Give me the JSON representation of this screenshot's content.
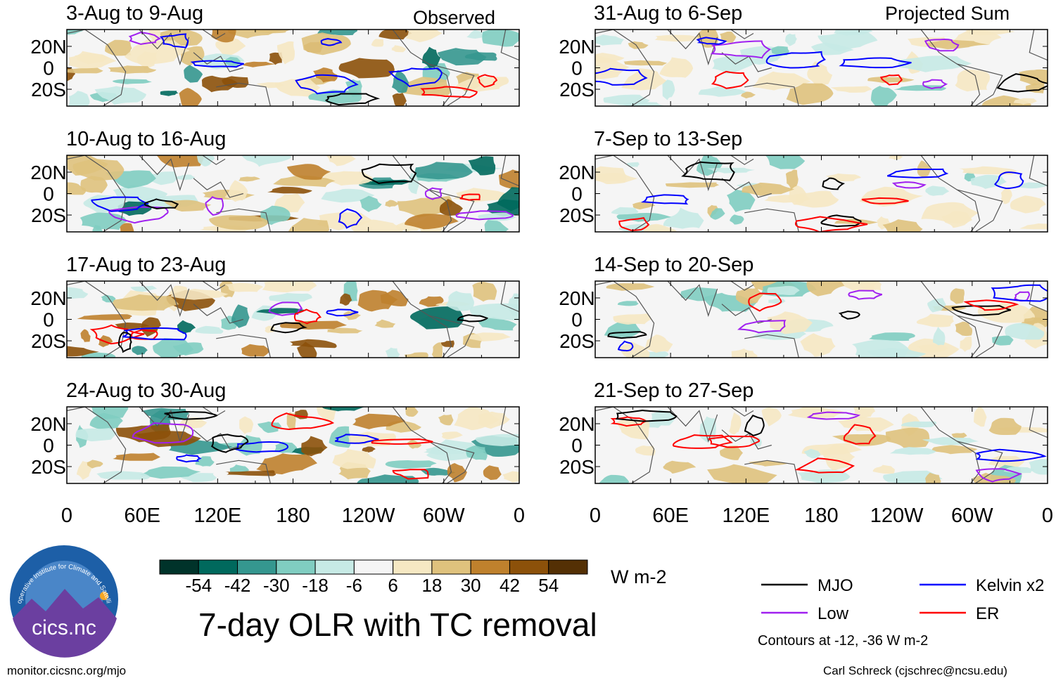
{
  "title": "7-day OLR with TC removal",
  "units": "W m-2",
  "columns": {
    "left": "Observed",
    "right": "Projected Sum"
  },
  "contour_note": "Contours at -12, -36 W m-2",
  "footer": {
    "left": "monitor.cicsnc.org/mjo",
    "right": "Carl Schreck (cjschrec@ncsu.edu)"
  },
  "logo": {
    "text": "cics.nc",
    "arc_text": "Cooperative Institute for Climate and Satellites"
  },
  "colorbar": {
    "labels": [
      "-54",
      "-42",
      "-30",
      "-18",
      "-6",
      "6",
      "18",
      "30",
      "42",
      "54"
    ],
    "colors": [
      "#00332a",
      "#00695d",
      "#35978f",
      "#80cdc1",
      "#c7eae5",
      "#f5f5f5",
      "#f6e8c3",
      "#dfc27d",
      "#bf812d",
      "#8c510a",
      "#543005"
    ]
  },
  "legend": [
    {
      "label": "MJO",
      "color": "#000000"
    },
    {
      "label": "Kelvin x2",
      "color": "#0000ff"
    },
    {
      "label": "Low",
      "color": "#a020f0"
    },
    {
      "label": "ER",
      "color": "#ff0000"
    }
  ],
  "chart_data": {
    "type": "heatmap",
    "variable": "7-day OLR anomaly",
    "units": "W m-2",
    "x_ticks": [
      "0",
      "60E",
      "120E",
      "180",
      "120W",
      "60W",
      "0"
    ],
    "y_ticks": [
      "20N",
      "0",
      "20S"
    ],
    "contour_levels": [
      -12,
      -36
    ],
    "panels": [
      {
        "title": "3-Aug to 9-Aug",
        "column": "Observed"
      },
      {
        "title": "10-Aug to 16-Aug",
        "column": "Observed"
      },
      {
        "title": "17-Aug to 23-Aug",
        "column": "Observed"
      },
      {
        "title": "24-Aug to 30-Aug",
        "column": "Observed"
      },
      {
        "title": "31-Aug to 6-Sep",
        "column": "Projected Sum"
      },
      {
        "title": "7-Sep to 13-Sep",
        "column": "Projected Sum"
      },
      {
        "title": "14-Sep to 20-Sep",
        "column": "Projected Sum"
      },
      {
        "title": "21-Sep to 27-Sep",
        "column": "Projected Sum"
      }
    ]
  }
}
